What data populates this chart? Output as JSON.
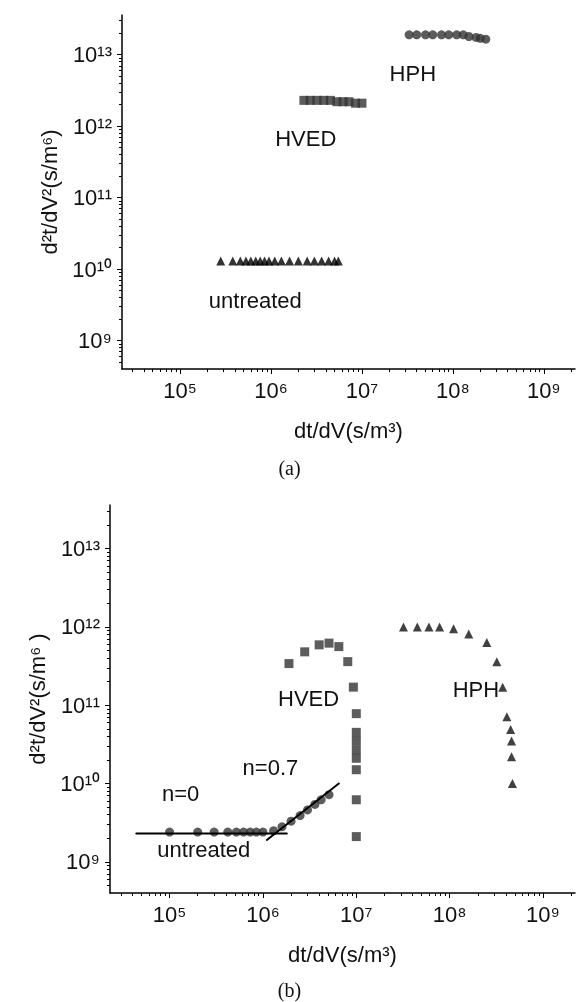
{
  "chart_data": [
    {
      "type": "scatter",
      "xlabel": "dt/dV(s/m³)",
      "ylabel": "d²t/dV²(s/m⁶)",
      "log": "xy",
      "grid": false,
      "xlim": [
        23000,
        2200000000
      ],
      "ylim": [
        400000000,
        36000000000000
      ],
      "xticks": [
        {
          "value": 100000,
          "label": "10⁵"
        },
        {
          "value": 1000000,
          "label": "10⁶"
        },
        {
          "value": 10000000,
          "label": "10⁷"
        },
        {
          "value": 100000000,
          "label": "10⁸"
        },
        {
          "value": 1000000000,
          "label": "10⁹"
        }
      ],
      "yticks": [
        {
          "value": 1000000000,
          "label": "10⁹"
        },
        {
          "value": 10000000000,
          "label": "10¹⁰"
        },
        {
          "value": 100000000000,
          "label": "10¹¹"
        },
        {
          "value": 1000000000000,
          "label": "10¹²"
        },
        {
          "value": 10000000000000,
          "label": "10¹³"
        }
      ],
      "series": [
        {
          "color": "#000000",
          "marker": "triangle",
          "x": [
            280000,
            380000,
            460000,
            530000,
            600000,
            680000,
            760000,
            850000,
            950000,
            1100000,
            1300000,
            1600000,
            2000000,
            2500000,
            3000000,
            3600000,
            4300000,
            5000000,
            5500000
          ],
          "values": [
            13000000000,
            13000000000,
            13000000000,
            13000000000,
            13000000000,
            13000000000,
            13000000000,
            13000000000,
            13000000000,
            13000000000,
            13000000000,
            13000000000,
            13000000000,
            13000000000,
            13000000000,
            13000000000,
            13000000000,
            13000000000,
            13000000000
          ]
        },
        {
          "color": "#333333",
          "marker": "square",
          "x": [
            2300000,
            2700000,
            3200000,
            3800000,
            4500000,
            5300000,
            6200000,
            7200000,
            8500000,
            10000000
          ],
          "values": [
            2300000000000,
            2300000000000,
            2300000000000,
            2300000000000,
            2300000000000,
            2200000000000,
            2200000000000,
            2200000000000,
            2100000000000,
            2100000000000
          ]
        },
        {
          "color": "#333333",
          "marker": "circle",
          "x": [
            33000000,
            40000000,
            50000000,
            60000000,
            75000000,
            90000000,
            110000000,
            130000000,
            150000000,
            180000000,
            200000000,
            230000000
          ],
          "values": [
            19000000000000,
            19000000000000,
            19000000000000,
            19000000000000,
            19000000000000,
            19000000000000,
            19000000000000,
            19000000000000,
            18000000000000,
            17500000000000,
            17000000000000,
            16500000000000
          ]
        }
      ],
      "annotations": [
        "HPH",
        "HVED",
        "untreated",
        "(a)"
      ]
    },
    {
      "type": "scatter",
      "xlabel": "dt/dV(s/m³)",
      "ylabel": "d²t/dV²(s/m⁶ )",
      "log": "xy",
      "grid": false,
      "xlim": [
        23000,
        2200000000
      ],
      "ylim": [
        400000000,
        36000000000000
      ],
      "xticks": [
        {
          "value": 100000,
          "label": "10⁵"
        },
        {
          "value": 1000000,
          "label": "10⁶"
        },
        {
          "value": 10000000,
          "label": "10⁷"
        },
        {
          "value": 100000000,
          "label": "10⁸"
        },
        {
          "value": 1000000000,
          "label": "10⁹"
        }
      ],
      "yticks": [
        {
          "value": 1000000000,
          "label": "10⁹"
        },
        {
          "value": 10000000000,
          "label": "10¹⁰"
        },
        {
          "value": 100000000000,
          "label": "10¹¹"
        },
        {
          "value": 1000000000000,
          "label": "10¹²"
        },
        {
          "value": 10000000000000,
          "label": "10¹³"
        }
      ],
      "series": [
        {
          "color": "#000000",
          "type": "line",
          "marker": "none",
          "x": [
            44000,
            1800000
          ],
          "values": [
            2300000000,
            2300000000
          ]
        },
        {
          "color": "#000000",
          "type": "line",
          "marker": "none",
          "x": [
            1100000,
            6500000
          ],
          "values": [
            1900000000,
            10000000000
          ]
        },
        {
          "color": "#333333",
          "marker": "circle",
          "x": [
            100000,
            200000,
            300000,
            420000,
            520000,
            620000,
            730000,
            850000,
            1000000,
            1300000,
            1600000,
            2000000,
            2500000,
            3000000,
            3600000,
            4200000,
            5100000
          ],
          "values": [
            2400000000,
            2400000000,
            2400000000,
            2400000000,
            2400000000,
            2400000000,
            2400000000,
            2400000000,
            2400000000,
            2500000000,
            2800000000,
            3300000000,
            3900000000,
            4600000000,
            5400000000,
            6200000000,
            7200000000
          ]
        },
        {
          "color": "#333333",
          "marker": "square",
          "x": [
            1900000,
            2800000,
            4000000,
            5100000,
            6500000,
            8100000,
            9300000,
            10000000,
            10000000,
            10000000,
            10000000,
            10000000,
            10000000,
            10000000,
            10000000
          ],
          "values": [
            340000000000,
            480000000000,
            590000000000,
            620000000000,
            560000000000,
            360000000000,
            170000000000,
            78000000000,
            45000000000,
            35000000000,
            27000000000,
            21000000000,
            15000000000,
            6200000000,
            2100000000
          ]
        },
        {
          "color": "#111111",
          "marker": "triangle",
          "x": [
            32000000,
            45000000,
            60000000,
            78000000,
            110000000,
            160000000,
            250000000,
            320000000,
            370000000,
            410000000,
            450000000,
            460000000,
            460000000,
            470000000
          ],
          "values": [
            1000000000000,
            1000000000000,
            1000000000000,
            1000000000000,
            950000000000,
            810000000000,
            630000000000,
            360000000000,
            170000000000,
            71000000000,
            49000000000,
            35000000000,
            22000000000,
            10000000000
          ]
        }
      ],
      "annotations": [
        "HVED",
        "HPH",
        "n=0.7",
        "n=0",
        "untreated",
        "(b)"
      ]
    }
  ]
}
